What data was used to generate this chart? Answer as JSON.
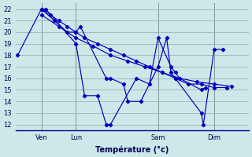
{
  "xlabel": "Température (°c)",
  "bg_color": "#cce8e8",
  "grid_color": "#99bbbb",
  "line_color": "#0000bb",
  "vline_color": "#444466",
  "ylim": [
    11.5,
    22.5
  ],
  "yticks": [
    12,
    13,
    14,
    15,
    16,
    17,
    18,
    19,
    20,
    21,
    22
  ],
  "xtick_labels": [
    "Ven",
    "Lun",
    "Sam",
    "Dim"
  ],
  "xtick_positions": [
    6,
    14,
    33,
    46
  ],
  "xlim": [
    0,
    54
  ],
  "vline_positions": [
    6,
    14,
    33,
    46
  ],
  "s1_x": [
    0.5,
    6,
    7,
    14,
    16,
    19,
    21,
    22,
    28,
    31,
    33,
    36,
    37,
    38,
    43,
    44
  ],
  "s1_y": [
    18,
    22,
    22,
    19,
    14.5,
    14.5,
    12,
    12,
    16,
    15.5,
    19.5,
    17,
    16.5,
    16,
    15,
    15.2
  ],
  "s2_x": [
    6,
    8,
    10,
    12,
    14,
    16,
    19,
    22,
    25,
    28,
    31,
    34,
    37,
    40,
    43,
    46,
    49
  ],
  "s2_y": [
    22,
    21.5,
    21,
    20.5,
    20,
    19.5,
    19,
    18.5,
    18,
    17.5,
    17,
    16.5,
    16,
    15.5,
    15.5,
    15.2,
    15.2
  ],
  "s3_x": [
    6,
    10,
    14,
    18,
    22,
    26,
    30,
    34,
    38,
    42,
    46,
    50
  ],
  "s3_y": [
    21.5,
    20.5,
    19.5,
    18.8,
    18,
    17.5,
    17,
    16.5,
    16,
    15.7,
    15.5,
    15.3
  ],
  "s4_x": [
    6,
    9,
    12,
    14,
    15,
    21,
    22,
    25,
    26,
    29,
    33,
    35,
    36,
    37,
    43,
    43.5,
    46,
    48
  ],
  "s4_y": [
    22,
    21,
    20,
    20,
    20.5,
    16,
    16,
    15.5,
    14,
    14,
    17,
    19.5,
    16.5,
    16,
    13,
    12,
    18.5,
    18.5
  ]
}
